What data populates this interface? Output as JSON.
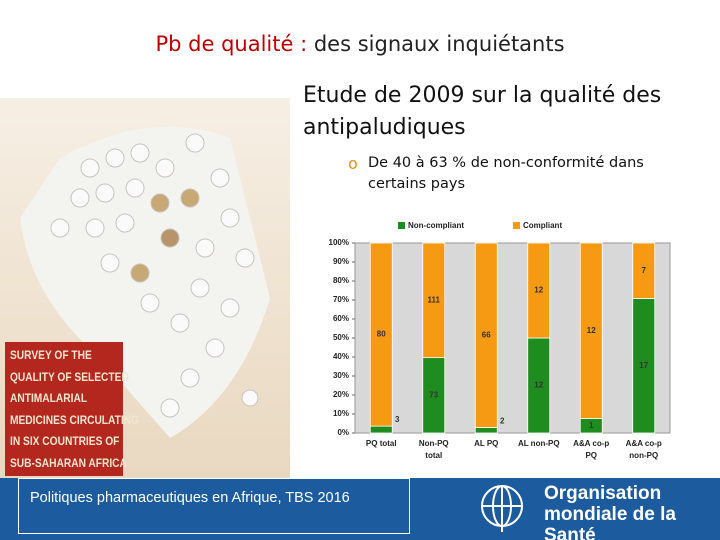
{
  "header": {
    "title_lead": "Pb de qualité :",
    "title_rest": "des signaux inquiétants"
  },
  "study": {
    "heading": "Etude de 2009 sur la qualité des antipaludiques",
    "bullet": "De 40 à 63 % de non-conformité dans certains pays"
  },
  "cover": {
    "lines": [
      "SURVEY OF THE",
      "QUALITY OF SELECTED",
      "ANTIMALARIAL",
      "MEDICINES CIRCULATING",
      "IN SIX COUNTRIES OF",
      "SUB-SAHARAN AFRICA"
    ]
  },
  "footer": {
    "caption": "Politiques pharmaceutiques en Afrique, TBS 2016",
    "org_line1": "Organisation",
    "org_line2": "mondiale de la Santé"
  },
  "chart_data": {
    "type": "stacked_percent_bar",
    "categories": [
      [
        "PQ total"
      ],
      [
        "Non-PQ",
        "total"
      ],
      [
        "AL PQ"
      ],
      [
        "AL non-PQ"
      ],
      [
        "A&A co-p",
        "PQ"
      ],
      [
        "A&A co-p",
        "non-PQ"
      ]
    ],
    "series": [
      {
        "name": "Non-compliant",
        "color": "#1e8c1e",
        "values": [
          3,
          73,
          2,
          12,
          1,
          17
        ]
      },
      {
        "name": "Compliant",
        "color": "#f59a12",
        "values": [
          80,
          111,
          66,
          12,
          12,
          7
        ]
      }
    ],
    "ylim": [
      0,
      100
    ],
    "yticks": [
      {
        "value": 0,
        "label": "0%"
      },
      {
        "value": 10,
        "label": "10%"
      },
      {
        "value": 20,
        "label": "20%"
      },
      {
        "value": 30,
        "label": "30%"
      },
      {
        "value": 40,
        "label": "40%"
      },
      {
        "value": 50,
        "label": "50%"
      },
      {
        "value": 60,
        "label": "60%"
      },
      {
        "value": 70,
        "label": "70%"
      },
      {
        "value": 80,
        "label": "80%"
      },
      {
        "value": 90,
        "label": "90%"
      },
      {
        "value": 100,
        "label": "100%"
      }
    ],
    "legend": "top"
  }
}
